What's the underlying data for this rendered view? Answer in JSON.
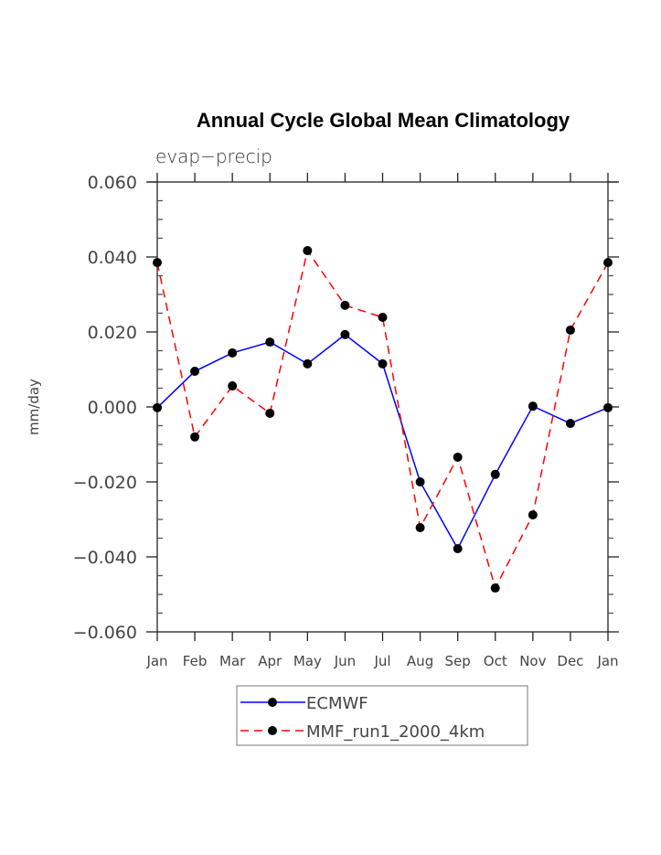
{
  "chart_data": {
    "type": "line",
    "title": "Annual Cycle Global Mean Climatology",
    "subtitle": "evap−precip",
    "xlabel": "",
    "ylabel": "mm/day",
    "categories": [
      "Jan",
      "Feb",
      "Mar",
      "Apr",
      "May",
      "Jun",
      "Jul",
      "Aug",
      "Sep",
      "Oct",
      "Nov",
      "Dec",
      "Jan"
    ],
    "ylim": [
      -0.06,
      0.06
    ],
    "y_major_ticks": [
      -0.06,
      -0.04,
      -0.02,
      0.0,
      0.02,
      0.04,
      0.06
    ],
    "y_tick_labels": [
      "−0.060",
      "−0.040",
      "−0.020",
      "0.000",
      "0.020",
      "0.040",
      "0.060"
    ],
    "y_minor_step": 0.005,
    "grid": false,
    "legend_position": "bottom-center",
    "series": [
      {
        "name": "ECMWF",
        "color": "#0000ff",
        "dash": "solid",
        "marker": "filled-circle",
        "values": [
          -0.0002,
          0.0095,
          0.0144,
          0.0173,
          0.0115,
          0.0193,
          0.0115,
          -0.02,
          -0.0378,
          -0.018,
          0.0002,
          -0.0044,
          -0.0002
        ]
      },
      {
        "name": "MMF_run1_2000_4km",
        "color": "#ff0000",
        "dash": "dashed",
        "marker": "filled-circle",
        "values": [
          0.0385,
          -0.008,
          0.0056,
          -0.0017,
          0.0417,
          0.0271,
          0.0239,
          -0.0322,
          -0.0134,
          -0.0483,
          -0.0288,
          0.0205,
          0.0385
        ]
      }
    ]
  }
}
